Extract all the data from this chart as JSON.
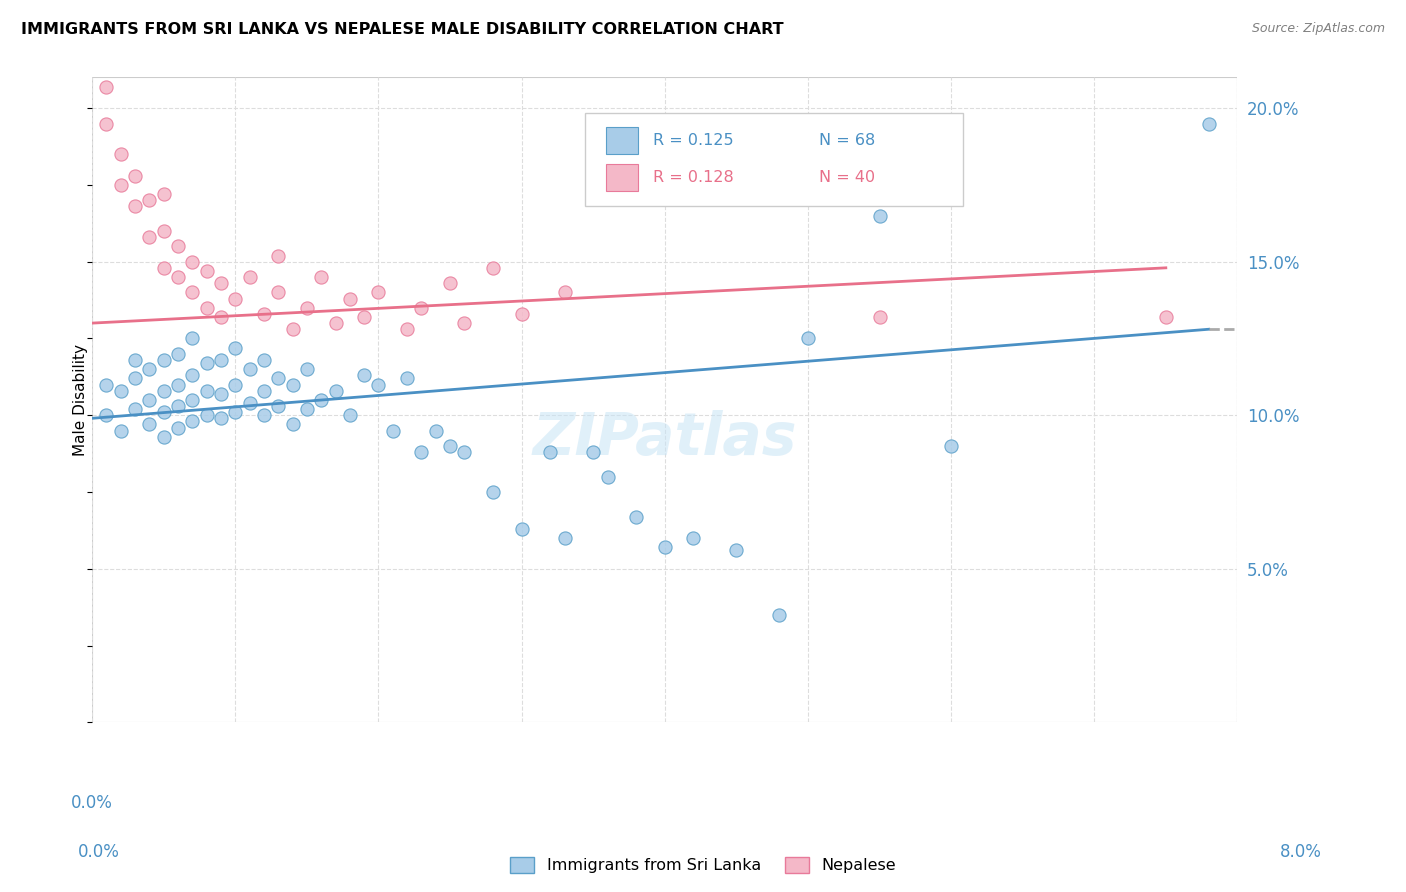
{
  "title": "IMMIGRANTS FROM SRI LANKA VS NEPALESE MALE DISABILITY CORRELATION CHART",
  "source": "Source: ZipAtlas.com",
  "ylabel": "Male Disability",
  "legend_r1": "0.125",
  "legend_n1": "68",
  "legend_r2": "0.128",
  "legend_n2": "40",
  "legend_label1": "Immigrants from Sri Lanka",
  "legend_label2": "Nepalese",
  "color_blue_fill": "#a8cce8",
  "color_blue_edge": "#5a9fc9",
  "color_blue_line": "#4a90c4",
  "color_pink_fill": "#f4b8c8",
  "color_pink_edge": "#e87a9a",
  "color_pink_line": "#e8708a",
  "color_dashed": "#aaaaaa",
  "watermark": "ZIPatlas",
  "xlim": [
    0.0,
    0.08
  ],
  "ylim": [
    0.0,
    0.21
  ],
  "right_yticks": [
    0.05,
    0.1,
    0.15,
    0.2
  ],
  "right_ylabels": [
    "5.0%",
    "10.0%",
    "15.0%",
    "20.0%"
  ],
  "sri_lanka_x": [
    0.001,
    0.001,
    0.002,
    0.002,
    0.003,
    0.003,
    0.003,
    0.004,
    0.004,
    0.004,
    0.005,
    0.005,
    0.005,
    0.005,
    0.006,
    0.006,
    0.006,
    0.006,
    0.007,
    0.007,
    0.007,
    0.007,
    0.008,
    0.008,
    0.008,
    0.009,
    0.009,
    0.009,
    0.01,
    0.01,
    0.01,
    0.011,
    0.011,
    0.012,
    0.012,
    0.012,
    0.013,
    0.013,
    0.014,
    0.014,
    0.015,
    0.015,
    0.016,
    0.017,
    0.018,
    0.019,
    0.02,
    0.021,
    0.022,
    0.023,
    0.024,
    0.025,
    0.026,
    0.028,
    0.03,
    0.032,
    0.033,
    0.035,
    0.036,
    0.038,
    0.04,
    0.042,
    0.045,
    0.048,
    0.05,
    0.055,
    0.06,
    0.078
  ],
  "sri_lanka_y": [
    0.1,
    0.11,
    0.095,
    0.108,
    0.102,
    0.112,
    0.118,
    0.097,
    0.105,
    0.115,
    0.093,
    0.101,
    0.108,
    0.118,
    0.096,
    0.103,
    0.11,
    0.12,
    0.098,
    0.105,
    0.113,
    0.125,
    0.1,
    0.108,
    0.117,
    0.099,
    0.107,
    0.118,
    0.101,
    0.11,
    0.122,
    0.104,
    0.115,
    0.1,
    0.108,
    0.118,
    0.103,
    0.112,
    0.097,
    0.11,
    0.102,
    0.115,
    0.105,
    0.108,
    0.1,
    0.113,
    0.11,
    0.095,
    0.112,
    0.088,
    0.095,
    0.09,
    0.088,
    0.075,
    0.063,
    0.088,
    0.06,
    0.088,
    0.08,
    0.067,
    0.057,
    0.06,
    0.056,
    0.035,
    0.125,
    0.165,
    0.09,
    0.195
  ],
  "nepalese_x": [
    0.001,
    0.001,
    0.002,
    0.002,
    0.003,
    0.003,
    0.004,
    0.004,
    0.005,
    0.005,
    0.005,
    0.006,
    0.006,
    0.007,
    0.007,
    0.008,
    0.008,
    0.009,
    0.009,
    0.01,
    0.011,
    0.012,
    0.013,
    0.013,
    0.014,
    0.015,
    0.016,
    0.017,
    0.018,
    0.019,
    0.02,
    0.022,
    0.023,
    0.025,
    0.026,
    0.028,
    0.03,
    0.033,
    0.055,
    0.075
  ],
  "nepalese_y": [
    0.207,
    0.195,
    0.175,
    0.185,
    0.168,
    0.178,
    0.158,
    0.17,
    0.148,
    0.16,
    0.172,
    0.145,
    0.155,
    0.14,
    0.15,
    0.135,
    0.147,
    0.132,
    0.143,
    0.138,
    0.145,
    0.133,
    0.14,
    0.152,
    0.128,
    0.135,
    0.145,
    0.13,
    0.138,
    0.132,
    0.14,
    0.128,
    0.135,
    0.143,
    0.13,
    0.148,
    0.133,
    0.14,
    0.132,
    0.132
  ],
  "sl_trend_x0": 0.0,
  "sl_trend_y0": 0.099,
  "sl_trend_x1": 0.078,
  "sl_trend_y1": 0.128,
  "nep_trend_x0": 0.0,
  "nep_trend_y0": 0.13,
  "nep_trend_x1": 0.075,
  "nep_trend_y1": 0.148
}
